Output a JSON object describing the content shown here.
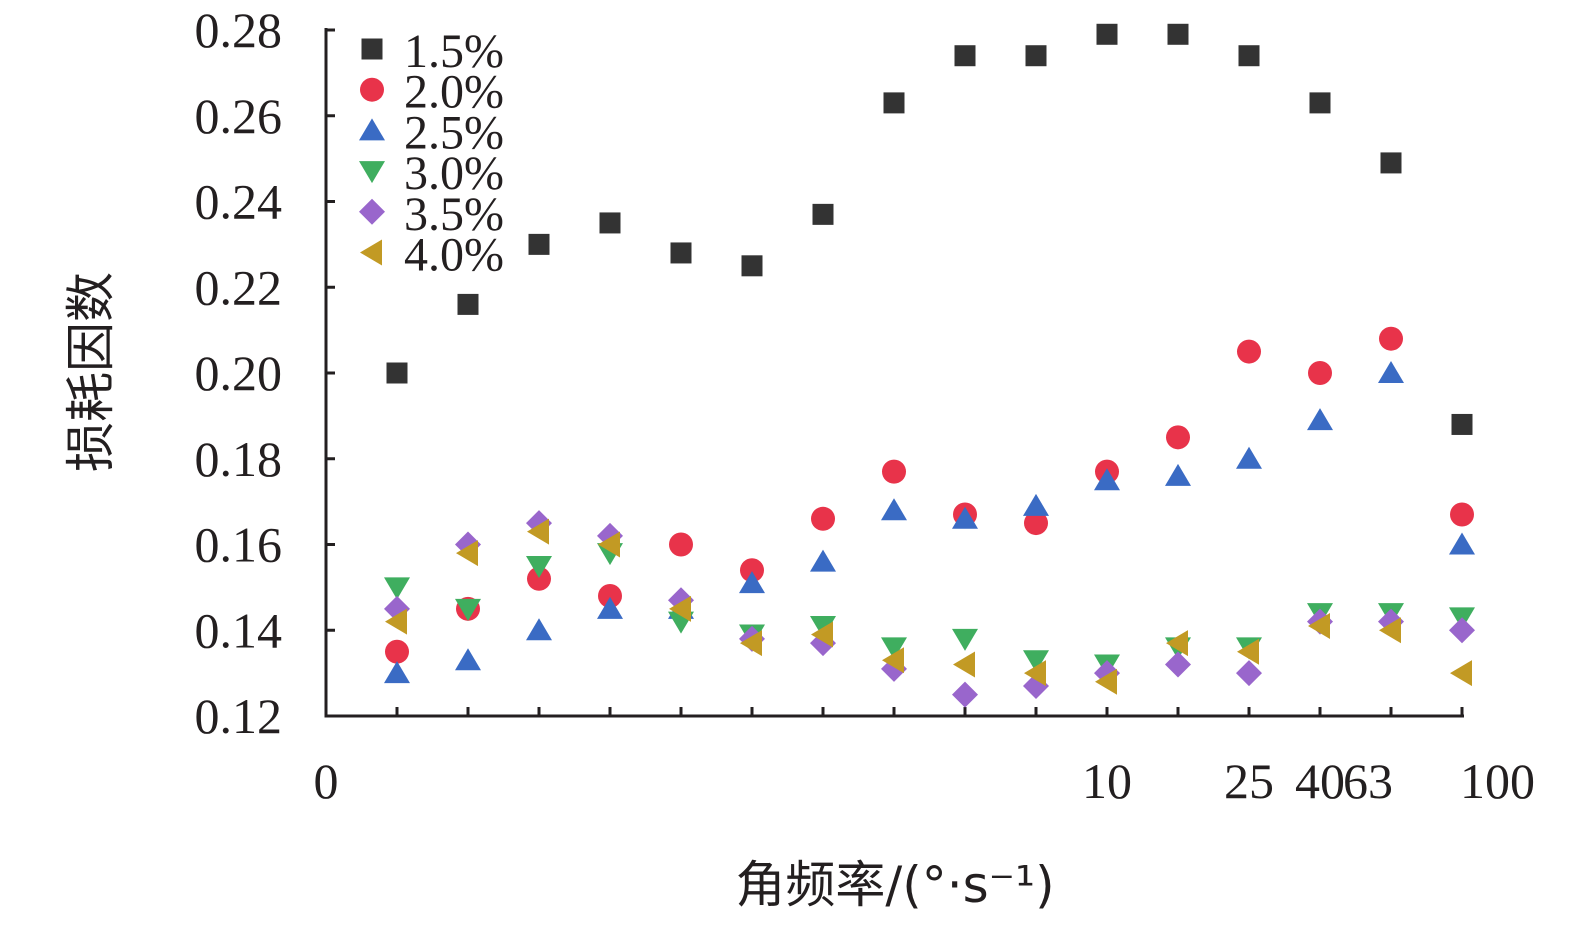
{
  "chart_data": {
    "type": "scatter",
    "xlabel": "角频率/(°·s⁻¹)",
    "ylabel": "损耗因数",
    "ylim": [
      0.12,
      0.28
    ],
    "y_ticks": [
      "0.12",
      "0.14",
      "0.16",
      "0.18",
      "0.20",
      "0.22",
      "0.24",
      "0.26",
      "0.28"
    ],
    "x_tick_labels": [
      {
        "label": "0",
        "index": 0
      },
      {
        "label": "10",
        "index": 11
      },
      {
        "label": "25",
        "index": 13
      },
      {
        "label": "40",
        "index": 14
      },
      {
        "label": "63",
        "index": 15
      },
      {
        "label": "100",
        "index": 16
      }
    ],
    "x_index": [
      1,
      2,
      3,
      4,
      5,
      6,
      7,
      8,
      9,
      10,
      11,
      12,
      13,
      14,
      15,
      16
    ],
    "legend_position": "top-left",
    "grid": false,
    "series": [
      {
        "name": "1.5%",
        "marker": "square",
        "color": "#333333",
        "values": [
          0.2,
          0.216,
          0.23,
          0.235,
          0.228,
          0.225,
          0.237,
          0.263,
          0.274,
          0.274,
          0.279,
          0.279,
          0.274,
          0.263,
          0.249,
          0.188
        ]
      },
      {
        "name": "2.0%",
        "marker": "circle",
        "color": "#e8334a",
        "values": [
          0.135,
          0.145,
          0.152,
          0.148,
          0.16,
          0.154,
          0.166,
          0.177,
          0.167,
          0.165,
          0.177,
          0.185,
          0.205,
          0.2,
          0.208,
          0.167
        ]
      },
      {
        "name": "2.5%",
        "marker": "triangle-up",
        "color": "#3a6bc4",
        "values": [
          0.13,
          0.133,
          0.14,
          0.145,
          0.145,
          0.151,
          0.156,
          0.168,
          0.166,
          0.169,
          0.175,
          0.176,
          0.18,
          0.189,
          0.2,
          0.16
        ]
      },
      {
        "name": "3.0%",
        "marker": "triangle-down",
        "color": "#3fae5f",
        "values": [
          0.15,
          0.145,
          0.155,
          0.158,
          0.142,
          0.139,
          0.141,
          0.136,
          0.138,
          0.133,
          0.132,
          0.136,
          0.136,
          0.144,
          0.144,
          0.143
        ]
      },
      {
        "name": "3.5%",
        "marker": "diamond",
        "color": "#9966cc",
        "values": [
          0.145,
          0.16,
          0.165,
          0.162,
          0.147,
          0.138,
          0.137,
          0.131,
          0.125,
          0.127,
          0.13,
          0.132,
          0.13,
          0.142,
          0.142,
          0.14
        ]
      },
      {
        "name": "4.0%",
        "marker": "triangle-left",
        "color": "#c29a24",
        "values": [
          0.142,
          0.158,
          0.163,
          0.16,
          0.145,
          0.137,
          0.139,
          0.133,
          0.132,
          0.13,
          0.128,
          0.137,
          0.135,
          0.141,
          0.14,
          0.13
        ]
      }
    ]
  }
}
